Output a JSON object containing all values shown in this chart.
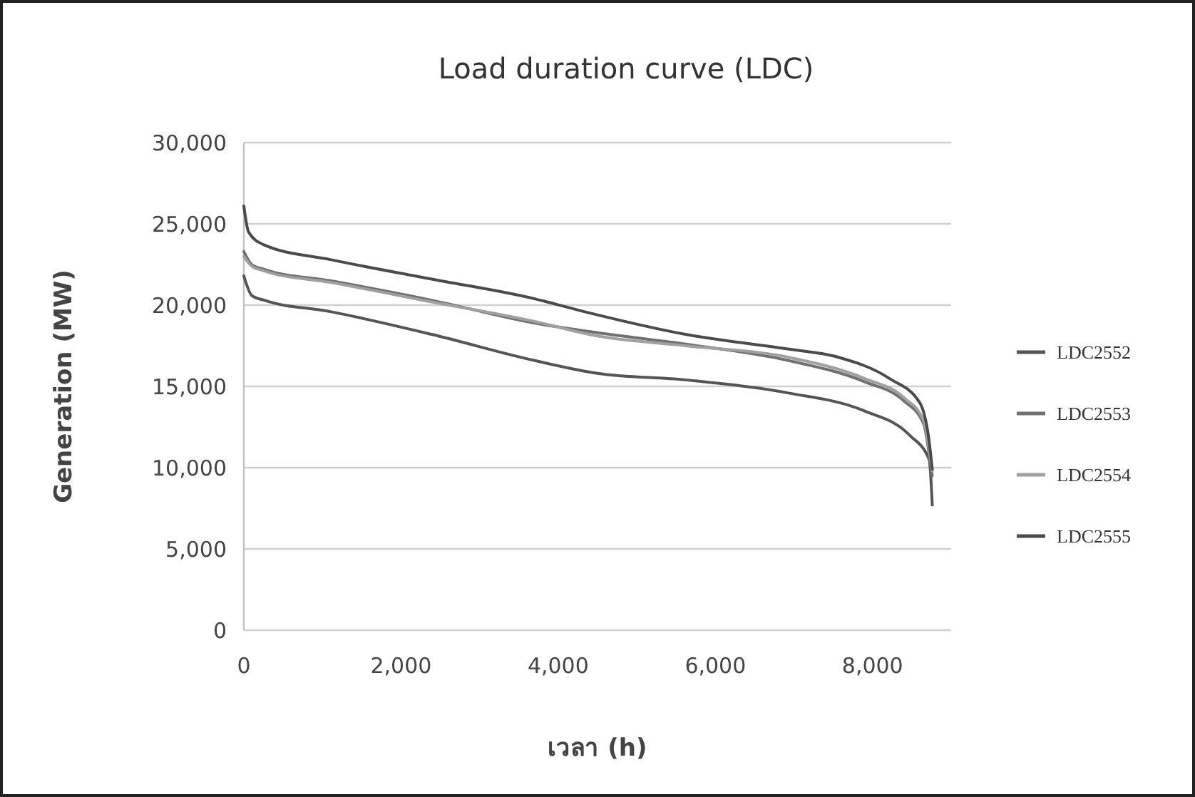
{
  "chart_data": {
    "type": "line",
    "title": "Load duration curve (LDC)",
    "xlabel": "เวลา (h)",
    "ylabel": "Generation (MW)",
    "xlim": [
      0,
      9000
    ],
    "xticks": [
      {
        "value": 0,
        "label": "0"
      },
      {
        "value": 2000,
        "label": "2,000"
      },
      {
        "value": 4000,
        "label": "4,000"
      },
      {
        "value": 6000,
        "label": "6,000"
      },
      {
        "value": 8000,
        "label": "8,000"
      }
    ],
    "ylim": [
      0,
      30000
    ],
    "yticks": [
      {
        "value": 0,
        "label": "0"
      },
      {
        "value": 5000,
        "label": "5,000"
      },
      {
        "value": 10000,
        "label": "10,000"
      },
      {
        "value": 15000,
        "label": "15,000"
      },
      {
        "value": 20000,
        "label": "20,000"
      },
      {
        "value": 25000,
        "label": "25,000"
      },
      {
        "value": 30000,
        "label": "30,000"
      }
    ],
    "grid": "y",
    "legend": "right",
    "line_style": "solid",
    "marker": "none",
    "series": [
      {
        "name": "LDC2552",
        "color": "#555555",
        "x": [
          0,
          100,
          260,
          1100,
          2390,
          3690,
          4500,
          5620,
          6920,
          7890,
          8470,
          8720,
          8760
        ],
        "values": [
          21800,
          20600,
          20300,
          19600,
          18200,
          16600,
          15800,
          15400,
          14600,
          13500,
          12000,
          10500,
          7700
        ]
      },
      {
        "name": "LDC2553",
        "color": "#707070",
        "x": [
          0,
          100,
          260,
          1100,
          2390,
          3690,
          4500,
          5620,
          6920,
          7890,
          8400,
          8650,
          8730,
          8760
        ],
        "values": [
          23300,
          22500,
          22200,
          21500,
          20300,
          18900,
          18300,
          17600,
          16600,
          15300,
          14100,
          12700,
          10500,
          9500
        ]
      },
      {
        "name": "LDC2554",
        "color": "#a0a0a0",
        "x": [
          0,
          100,
          260,
          1100,
          2390,
          3690,
          4500,
          5620,
          6920,
          7890,
          8400,
          8650,
          8730,
          8760
        ],
        "values": [
          23000,
          22400,
          22100,
          21400,
          20200,
          19000,
          18100,
          17500,
          16800,
          15500,
          14300,
          12900,
          10800,
          9800
        ]
      },
      {
        "name": "LDC2555",
        "color": "#4a4a4a",
        "x": [
          0,
          60,
          260,
          1100,
          2390,
          3690,
          4330,
          5620,
          6920,
          7560,
          8210,
          8600,
          8715,
          8760
        ],
        "values": [
          26100,
          24500,
          23700,
          22800,
          21600,
          20400,
          19600,
          18200,
          17300,
          16800,
          15500,
          14000,
          11800,
          9900
        ]
      }
    ]
  }
}
